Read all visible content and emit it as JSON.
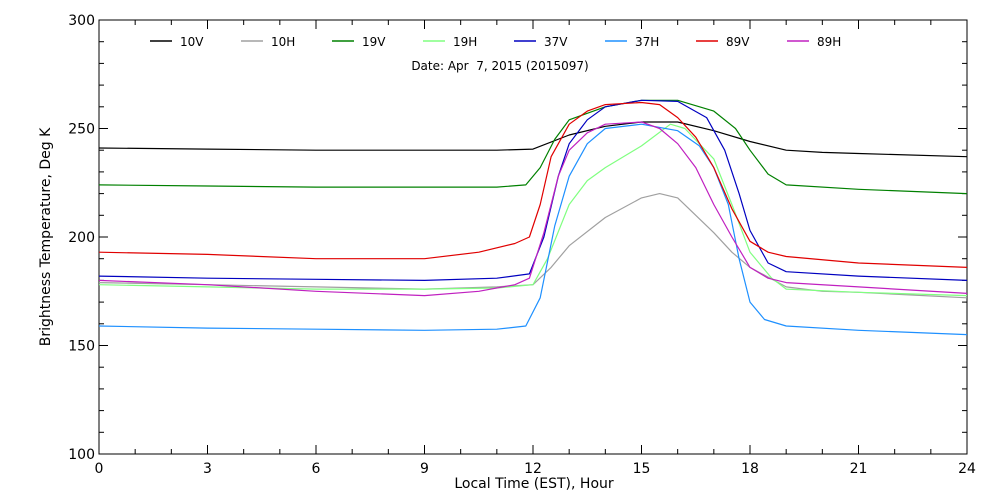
{
  "chart_data": {
    "type": "line",
    "title": "Date: Apr  7, 2015 (2015097)",
    "xlabel": "Local Time (EST), Hour",
    "ylabel": "Brightness Temperature, Deg K",
    "xlim": [
      0,
      24
    ],
    "ylim": [
      100,
      300
    ],
    "xticks": [
      0,
      3,
      6,
      9,
      12,
      15,
      18,
      21,
      24
    ],
    "yticks": [
      100,
      150,
      200,
      250,
      300
    ],
    "grid": false,
    "legend_placement": "top, single row",
    "series": [
      {
        "name": "10V",
        "color": "#000000",
        "points": [
          [
            0,
            241
          ],
          [
            3,
            240.5
          ],
          [
            6,
            240
          ],
          [
            9,
            240
          ],
          [
            11,
            240
          ],
          [
            12,
            240.5
          ],
          [
            13,
            247
          ],
          [
            14,
            251
          ],
          [
            15,
            253
          ],
          [
            16,
            253
          ],
          [
            17,
            249
          ],
          [
            18,
            244
          ],
          [
            19,
            240
          ],
          [
            20,
            239
          ],
          [
            21,
            238.5
          ],
          [
            24,
            237
          ]
        ]
      },
      {
        "name": "10H",
        "color": "#a0a0a0",
        "points": [
          [
            0,
            179
          ],
          [
            3,
            178
          ],
          [
            6,
            177
          ],
          [
            9,
            176
          ],
          [
            11,
            177
          ],
          [
            12,
            178
          ],
          [
            12.5,
            186
          ],
          [
            13,
            196
          ],
          [
            14,
            209
          ],
          [
            15,
            218
          ],
          [
            15.5,
            220
          ],
          [
            16,
            218
          ],
          [
            17,
            202
          ],
          [
            17.5,
            193
          ],
          [
            18,
            186
          ],
          [
            19,
            177
          ],
          [
            20,
            175
          ],
          [
            21,
            174.5
          ],
          [
            24,
            172
          ]
        ]
      },
      {
        "name": "19V",
        "color": "#008000",
        "points": [
          [
            0,
            224
          ],
          [
            3,
            223.5
          ],
          [
            6,
            223
          ],
          [
            9,
            223
          ],
          [
            11,
            223
          ],
          [
            11.8,
            224
          ],
          [
            12.2,
            232
          ],
          [
            12.6,
            245
          ],
          [
            13,
            254
          ],
          [
            14,
            260
          ],
          [
            15,
            263
          ],
          [
            16,
            263
          ],
          [
            17,
            258
          ],
          [
            17.6,
            250
          ],
          [
            18,
            240
          ],
          [
            18.5,
            229
          ],
          [
            19,
            224
          ],
          [
            21,
            222
          ],
          [
            24,
            220
          ]
        ]
      },
      {
        "name": "19H",
        "color": "#80ff80",
        "points": [
          [
            0,
            178
          ],
          [
            3,
            177
          ],
          [
            6,
            176
          ],
          [
            9,
            176
          ],
          [
            11,
            176.5
          ],
          [
            12,
            178
          ],
          [
            12.4,
            190
          ],
          [
            13,
            215
          ],
          [
            13.5,
            226
          ],
          [
            14,
            232
          ],
          [
            15,
            242
          ],
          [
            15.8,
            252
          ],
          [
            16.2,
            250
          ],
          [
            17,
            236
          ],
          [
            17.5,
            215
          ],
          [
            18,
            193
          ],
          [
            18.6,
            181
          ],
          [
            19,
            176
          ],
          [
            21,
            174.5
          ],
          [
            24,
            173
          ]
        ]
      },
      {
        "name": "37V",
        "color": "#0000c0",
        "points": [
          [
            0,
            182
          ],
          [
            3,
            181
          ],
          [
            6,
            180.5
          ],
          [
            9,
            180
          ],
          [
            11,
            181
          ],
          [
            11.9,
            183
          ],
          [
            12.3,
            200
          ],
          [
            12.7,
            228
          ],
          [
            13,
            243
          ],
          [
            13.5,
            254
          ],
          [
            14,
            260
          ],
          [
            15,
            263
          ],
          [
            16,
            262.5
          ],
          [
            16.8,
            255
          ],
          [
            17.3,
            240
          ],
          [
            17.7,
            220
          ],
          [
            18,
            203
          ],
          [
            18.5,
            188
          ],
          [
            19,
            184
          ],
          [
            21,
            182
          ],
          [
            24,
            180
          ]
        ]
      },
      {
        "name": "37H",
        "color": "#1e90ff",
        "points": [
          [
            0,
            159
          ],
          [
            3,
            158
          ],
          [
            6,
            157.5
          ],
          [
            9,
            157
          ],
          [
            11,
            157.5
          ],
          [
            11.8,
            159
          ],
          [
            12.2,
            172
          ],
          [
            12.6,
            205
          ],
          [
            13,
            228
          ],
          [
            13.5,
            243
          ],
          [
            14,
            250
          ],
          [
            15,
            252
          ],
          [
            16,
            249
          ],
          [
            16.6,
            242
          ],
          [
            17,
            232
          ],
          [
            17.4,
            215
          ],
          [
            17.7,
            190
          ],
          [
            18,
            170
          ],
          [
            18.4,
            162
          ],
          [
            19,
            159
          ],
          [
            21,
            157
          ],
          [
            24,
            155
          ]
        ]
      },
      {
        "name": "89V",
        "color": "#e00000",
        "points": [
          [
            0,
            193
          ],
          [
            3,
            192
          ],
          [
            6,
            190
          ],
          [
            9,
            190
          ],
          [
            10.5,
            193
          ],
          [
            11.5,
            197
          ],
          [
            11.9,
            200
          ],
          [
            12.2,
            215
          ],
          [
            12.5,
            237
          ],
          [
            13,
            252
          ],
          [
            13.5,
            258
          ],
          [
            14,
            261
          ],
          [
            15,
            262
          ],
          [
            15.5,
            261
          ],
          [
            16,
            255
          ],
          [
            16.5,
            246
          ],
          [
            17,
            232
          ],
          [
            17.5,
            213
          ],
          [
            18,
            198
          ],
          [
            18.5,
            193
          ],
          [
            19,
            191
          ],
          [
            21,
            188
          ],
          [
            24,
            186
          ]
        ]
      },
      {
        "name": "89H",
        "color": "#c020c0",
        "points": [
          [
            0,
            180
          ],
          [
            3,
            178
          ],
          [
            6,
            175
          ],
          [
            9,
            173
          ],
          [
            10.5,
            175
          ],
          [
            11.5,
            178
          ],
          [
            11.9,
            181
          ],
          [
            12.3,
            202
          ],
          [
            12.7,
            228
          ],
          [
            13,
            240
          ],
          [
            13.5,
            248
          ],
          [
            14,
            252
          ],
          [
            15,
            253
          ],
          [
            15.5,
            250
          ],
          [
            16,
            243
          ],
          [
            16.5,
            232
          ],
          [
            17,
            215
          ],
          [
            17.5,
            200
          ],
          [
            18,
            186
          ],
          [
            18.5,
            181
          ],
          [
            19,
            179
          ],
          [
            21,
            177
          ],
          [
            24,
            174
          ]
        ]
      }
    ]
  }
}
